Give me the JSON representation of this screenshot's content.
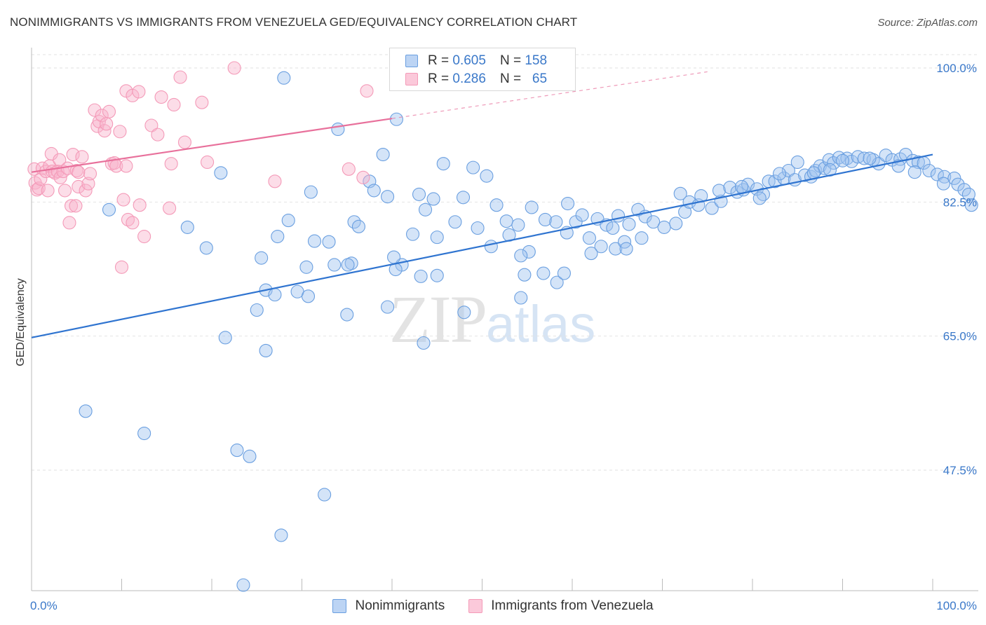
{
  "header": {
    "title": "NONIMMIGRANTS VS IMMIGRANTS FROM VENEZUELA GED/EQUIVALENCY CORRELATION CHART",
    "source": "Source: ZipAtlas.com"
  },
  "watermark": {
    "zip": "ZIP",
    "atlas": "atlas"
  },
  "legend": {
    "rows": [
      {
        "r_label": "R =",
        "r_value": "0.605",
        "n_label": "N =",
        "n_value": "158"
      },
      {
        "r_label": "R =",
        "r_value": "0.286",
        "n_label": "N =",
        "n_value": "65"
      }
    ]
  },
  "chart_data": {
    "type": "scatter",
    "title": "NONIMMIGRANTS VS IMMIGRANTS FROM VENEZUELA GED/EQUIVALENCY CORRELATION CHART",
    "xlabel": "",
    "ylabel": "GED/Equivalency",
    "xlim": [
      0,
      100
    ],
    "ylim": [
      31,
      102
    ],
    "x_ticks": [
      0,
      10,
      20,
      30,
      40,
      50,
      60,
      70,
      80,
      90,
      100
    ],
    "x_tick_labels": [
      {
        "value": 0,
        "label": "0.0%"
      },
      {
        "value": 100,
        "label": "100.0%"
      }
    ],
    "y_ticks": [
      {
        "value": 100,
        "label": "100.0%"
      },
      {
        "value": 82.5,
        "label": "82.5%"
      },
      {
        "value": 65,
        "label": "65.0%"
      },
      {
        "value": 47.5,
        "label": "47.5%"
      }
    ],
    "grid": "horizontal dashed",
    "legend_position": "bottom-center",
    "colors": {
      "nonimmigrants": "#6a9fe0",
      "venezuela": "#f49ab8",
      "blue_line": "#2f74d0",
      "pink_line": "#e8709b"
    },
    "series": [
      {
        "name": "Nonimmigrants",
        "trend": {
          "x": [
            0,
            100
          ],
          "y": [
            64.8,
            88.7
          ]
        },
        "points": [
          [
            28,
            98.7
          ],
          [
            40.5,
            93.3
          ],
          [
            34,
            92.0
          ],
          [
            39,
            88.7
          ],
          [
            45.7,
            87.5
          ],
          [
            49,
            87.0
          ],
          [
            50.5,
            85.9
          ],
          [
            21,
            86.3
          ],
          [
            37.5,
            85.2
          ],
          [
            38,
            84.0
          ],
          [
            31,
            83.8
          ],
          [
            39.5,
            83.2
          ],
          [
            43,
            83.5
          ],
          [
            44.6,
            82.9
          ],
          [
            47.9,
            83.1
          ],
          [
            43.7,
            81.5
          ],
          [
            51.6,
            82.1
          ],
          [
            55.5,
            81.8
          ],
          [
            59.5,
            82.3
          ],
          [
            17.3,
            79.2
          ],
          [
            28.5,
            80.1
          ],
          [
            35.8,
            79.9
          ],
          [
            36.3,
            79.3
          ],
          [
            47,
            79.9
          ],
          [
            49.5,
            79.1
          ],
          [
            53,
            78.2
          ],
          [
            52.7,
            80.0
          ],
          [
            54,
            79.5
          ],
          [
            57,
            80.2
          ],
          [
            58.2,
            79.9
          ],
          [
            60.4,
            79.9
          ],
          [
            27.3,
            78.0
          ],
          [
            31.4,
            77.4
          ],
          [
            33,
            77.3
          ],
          [
            42.3,
            78.3
          ],
          [
            45,
            77.9
          ],
          [
            51,
            76.7
          ],
          [
            55.2,
            76.0
          ],
          [
            59.4,
            78.5
          ],
          [
            61.9,
            77.8
          ],
          [
            63.2,
            76.7
          ],
          [
            64.8,
            76.4
          ],
          [
            65.8,
            77.3
          ],
          [
            67.7,
            77.8
          ],
          [
            62.1,
            75.8
          ],
          [
            66,
            76.4
          ],
          [
            19.4,
            76.5
          ],
          [
            25.5,
            75.2
          ],
          [
            30.5,
            74.0
          ],
          [
            33.6,
            74.3
          ],
          [
            35.5,
            74.5
          ],
          [
            35.1,
            74.3
          ],
          [
            41.1,
            74.3
          ],
          [
            40.2,
            75.3
          ],
          [
            40.4,
            73.7
          ],
          [
            43.2,
            72.8
          ],
          [
            45,
            72.9
          ],
          [
            54.3,
            75.5
          ],
          [
            54.7,
            73.0
          ],
          [
            56.8,
            73.2
          ],
          [
            58.3,
            72.0
          ],
          [
            59.1,
            73.2
          ],
          [
            26,
            71.0
          ],
          [
            27,
            70.4
          ],
          [
            29.5,
            70.8
          ],
          [
            30.7,
            70.2
          ],
          [
            54.3,
            70.0
          ],
          [
            25,
            68.4
          ],
          [
            35,
            67.8
          ],
          [
            39.5,
            68.8
          ],
          [
            48,
            68.1
          ],
          [
            21.5,
            64.8
          ],
          [
            26,
            63.1
          ],
          [
            43.5,
            64.1
          ],
          [
            8.6,
            81.5
          ],
          [
            6,
            55.2
          ],
          [
            12.5,
            52.3
          ],
          [
            22.8,
            50.1
          ],
          [
            24.2,
            49.3
          ],
          [
            32.5,
            44.3
          ],
          [
            27.7,
            39.0
          ],
          [
            23.5,
            32.5
          ],
          [
            61.1,
            80.8
          ],
          [
            62.8,
            80.3
          ],
          [
            63.8,
            79.5
          ],
          [
            64.5,
            79.1
          ],
          [
            65.1,
            80.7
          ],
          [
            66.3,
            79.6
          ],
          [
            67.3,
            81.5
          ],
          [
            68.1,
            80.6
          ],
          [
            69,
            79.9
          ],
          [
            70.2,
            79.2
          ],
          [
            71.5,
            79.7
          ],
          [
            72.5,
            81.2
          ],
          [
            73,
            82.5
          ],
          [
            74,
            82.1
          ],
          [
            75.5,
            81.7
          ],
          [
            76.5,
            82.6
          ],
          [
            72,
            83.6
          ],
          [
            74.3,
            83.3
          ],
          [
            76.3,
            84.0
          ],
          [
            77.5,
            84.4
          ],
          [
            78.3,
            83.8
          ],
          [
            79,
            84.1
          ],
          [
            79.5,
            84.8
          ],
          [
            80.5,
            84.2
          ],
          [
            81.2,
            83.5
          ],
          [
            81.8,
            85.2
          ],
          [
            82.5,
            85.2
          ],
          [
            83.5,
            85.6
          ],
          [
            84,
            86.6
          ],
          [
            84.7,
            85.4
          ],
          [
            85.8,
            86.0
          ],
          [
            86.5,
            85.8
          ],
          [
            87,
            86.6
          ],
          [
            87.5,
            87.2
          ],
          [
            88,
            86.9
          ],
          [
            88.5,
            88.0
          ],
          [
            89,
            87.6
          ],
          [
            89.6,
            88.3
          ],
          [
            90.5,
            88.2
          ],
          [
            91,
            87.8
          ],
          [
            91.7,
            88.4
          ],
          [
            92.4,
            88.2
          ],
          [
            93.4,
            88.0
          ],
          [
            94,
            87.5
          ],
          [
            94.8,
            88.6
          ],
          [
            95.5,
            88.0
          ],
          [
            96.4,
            88.1
          ],
          [
            97,
            88.7
          ],
          [
            97.8,
            87.9
          ],
          [
            98.4,
            87.7
          ],
          [
            99,
            87.6
          ],
          [
            99.6,
            86.6
          ],
          [
            100.5,
            86.1
          ],
          [
            101.3,
            85.8
          ],
          [
            102.4,
            85.6
          ],
          [
            101.2,
            84.9
          ],
          [
            102.8,
            84.8
          ],
          [
            103.5,
            84.1
          ],
          [
            104,
            83.5
          ],
          [
            104.3,
            82.1
          ],
          [
            98,
            86.4
          ],
          [
            96.2,
            87.2
          ],
          [
            93,
            88.2
          ],
          [
            90,
            87.9
          ],
          [
            88.6,
            86.7
          ],
          [
            86.8,
            86.3
          ],
          [
            85,
            87.7
          ],
          [
            83,
            86.2
          ],
          [
            80.8,
            83.0
          ],
          [
            78.8,
            84.5
          ]
        ]
      },
      {
        "name": "Immigrants from Venezuela",
        "trend": {
          "x": [
            0,
            40
          ],
          "y": [
            86.4,
            93.4
          ],
          "dash_to": {
            "x": 75,
            "y": 99.5
          }
        },
        "points": [
          [
            0.3,
            86.8
          ],
          [
            0.4,
            85.0
          ],
          [
            0.6,
            84.1
          ],
          [
            0.8,
            84.3
          ],
          [
            1.0,
            85.5
          ],
          [
            1.2,
            86.9
          ],
          [
            1.6,
            86.5
          ],
          [
            1.8,
            84.0
          ],
          [
            2.0,
            87.2
          ],
          [
            2.3,
            86.5
          ],
          [
            2.2,
            88.8
          ],
          [
            2.6,
            86.3
          ],
          [
            2.9,
            86.5
          ],
          [
            3.2,
            85.7
          ],
          [
            3.5,
            86.5
          ],
          [
            3.1,
            88.0
          ],
          [
            3.7,
            84.0
          ],
          [
            4.0,
            86.9
          ],
          [
            4.2,
            79.8
          ],
          [
            4.4,
            82.0
          ],
          [
            4.6,
            88.7
          ],
          [
            4.9,
            82.0
          ],
          [
            5.0,
            86.6
          ],
          [
            5.2,
            84.5
          ],
          [
            5.6,
            88.4
          ],
          [
            5.2,
            86.4
          ],
          [
            6.0,
            84.0
          ],
          [
            6.3,
            84.9
          ],
          [
            6.5,
            86.2
          ],
          [
            7.0,
            94.5
          ],
          [
            7.3,
            92.4
          ],
          [
            7.5,
            93.0
          ],
          [
            7.8,
            93.8
          ],
          [
            8.1,
            91.8
          ],
          [
            8.3,
            92.7
          ],
          [
            8.6,
            94.3
          ],
          [
            8.9,
            87.5
          ],
          [
            9.2,
            87.6
          ],
          [
            9.4,
            87.2
          ],
          [
            9.8,
            91.7
          ],
          [
            10.5,
            87.2
          ],
          [
            10.2,
            82.8
          ],
          [
            10.7,
            80.2
          ],
          [
            11.2,
            79.8
          ],
          [
            12.0,
            82.1
          ],
          [
            12.5,
            78.0
          ],
          [
            10.5,
            97.0
          ],
          [
            11.2,
            96.4
          ],
          [
            11.9,
            96.9
          ],
          [
            13.3,
            92.5
          ],
          [
            14.0,
            91.3
          ],
          [
            14.4,
            96.2
          ],
          [
            15.5,
            87.5
          ],
          [
            15.8,
            95.2
          ],
          [
            15.3,
            81.7
          ],
          [
            16.5,
            98.8
          ],
          [
            17.0,
            90.3
          ],
          [
            18.9,
            95.5
          ],
          [
            19.5,
            87.7
          ],
          [
            22.5,
            100.0
          ],
          [
            27.0,
            85.2
          ],
          [
            35.2,
            86.8
          ],
          [
            36.8,
            85.7
          ],
          [
            37.2,
            97.0
          ],
          [
            10.0,
            74.0
          ]
        ]
      }
    ]
  },
  "bottom_legend": [
    {
      "label": "Nonimmigrants"
    },
    {
      "label": "Immigrants from Venezuela"
    }
  ]
}
